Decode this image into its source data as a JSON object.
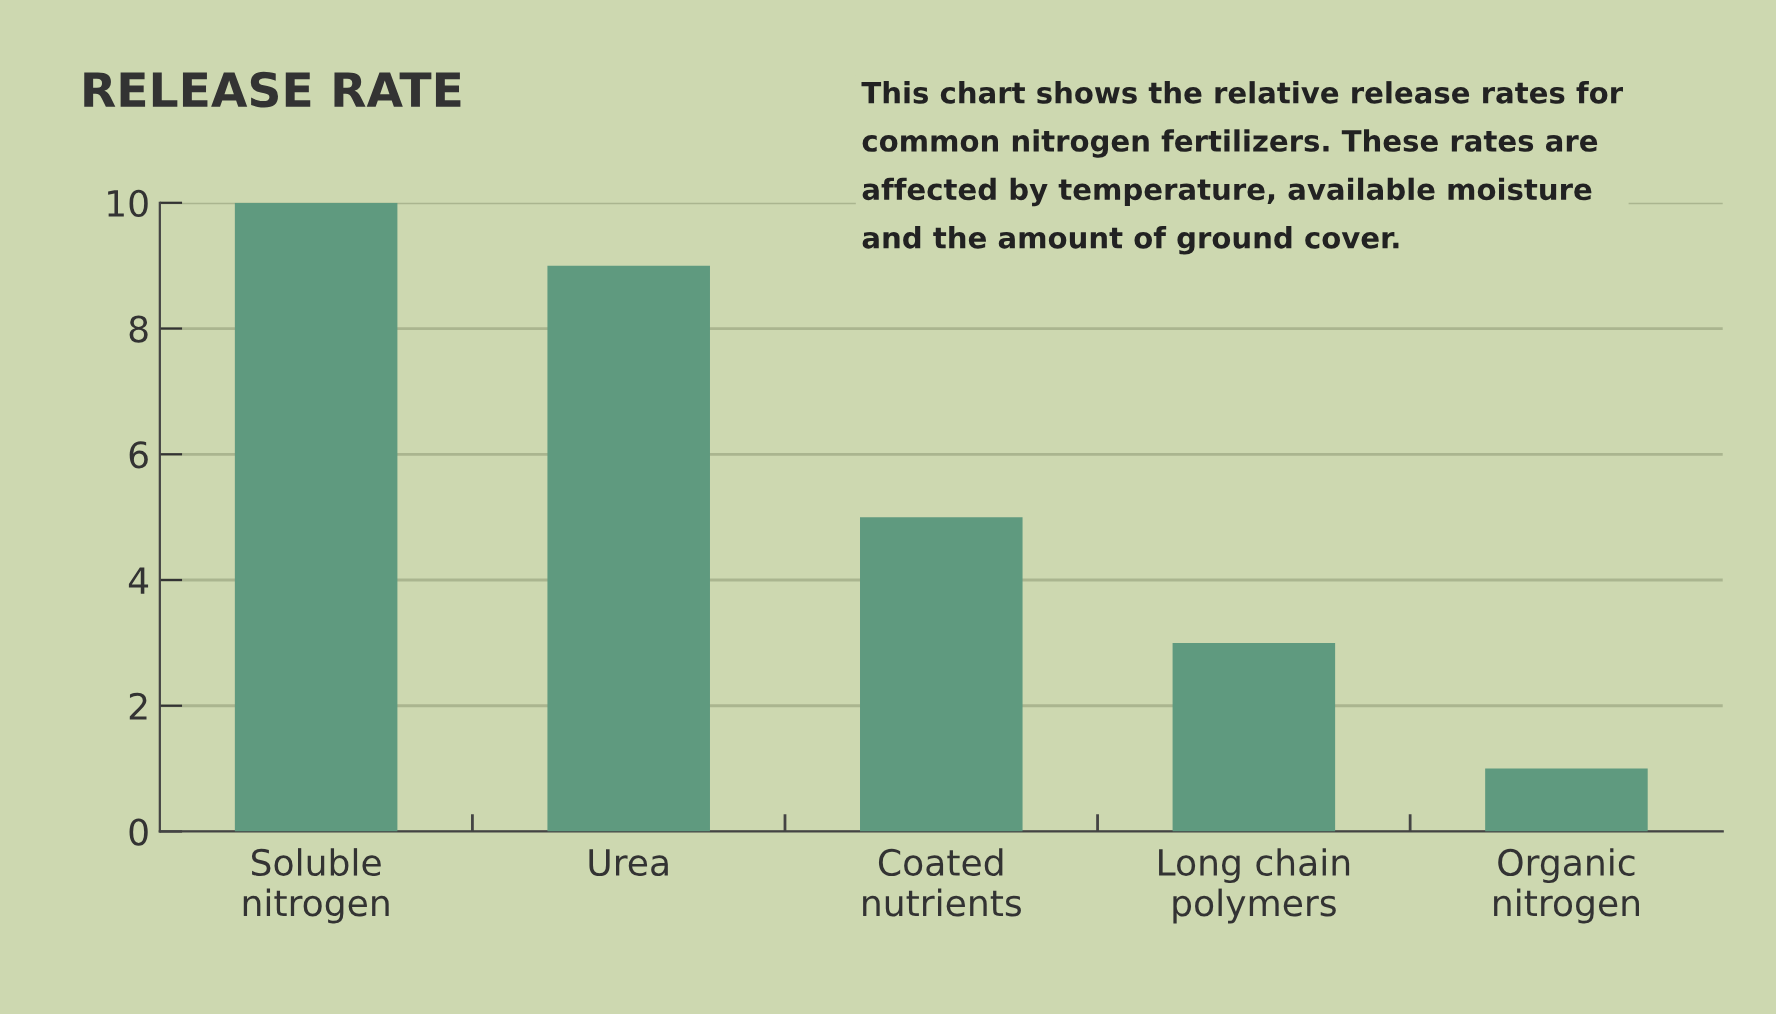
{
  "chart_data": {
    "type": "bar",
    "title": "RELEASE RATE",
    "categories": [
      "Soluble\nnitrogen",
      "Urea",
      "Coated\nnutrients",
      "Long chain\npolymers",
      "Organic\nnitrogen"
    ],
    "values": [
      10,
      9,
      5,
      3,
      1
    ],
    "color": "#5f9a7f",
    "ylim": [
      0,
      10
    ],
    "yticks": [
      0,
      2,
      4,
      6,
      8,
      10
    ],
    "grid": "y",
    "annotations": [
      "This chart shows the relative release rates for\ncommon nitrogen fertilizers. These rates are\naffected by temperature, available moisture\nand the amount of ground cover."
    ]
  }
}
